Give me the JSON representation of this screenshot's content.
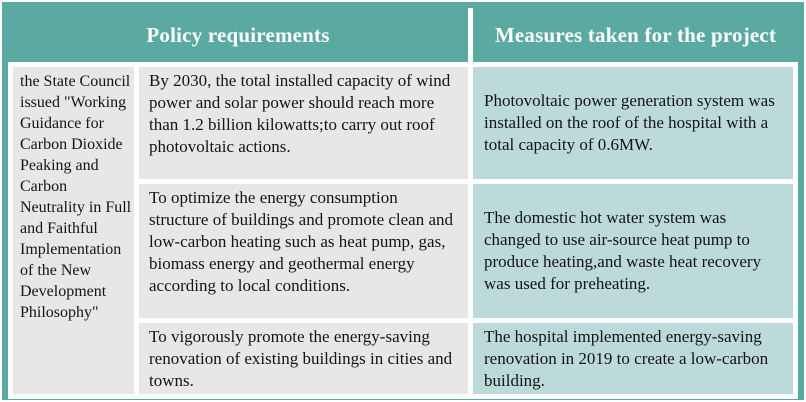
{
  "table": {
    "header": {
      "policy_label": "Policy requirements",
      "measures_label": "Measures taken for the project"
    },
    "policy_source": "the State Council issued \"Working Guidance for Carbon Dioxide Peaking and Carbon Neutrality in Full and Faithful Implementation of the New Development Philosophy\"",
    "rows": [
      {
        "requirement": "By 2030, the total installed capacity of wind power and solar power should reach more than 1.2 billion kilowatts;to carry out roof photovoltaic actions.",
        "measure": "Photovoltaic power generation system was installed on the roof of the hospital with a total capacity of 0.6MW."
      },
      {
        "requirement": "To optimize the energy consumption structure of buildings and promote clean and low-carbon heating such as heat pump, gas, biomass energy and geothermal energy according to local conditions.",
        "measure": "The domestic hot water system was changed to use air-source heat pump to produce heating,and waste heat recovery was used for preheating."
      },
      {
        "requirement": "To vigorously promote the energy-saving renovation of existing buildings in cities and towns.",
        "measure": "The hospital implemented energy-saving renovation in 2019 to create a low-carbon building."
      }
    ],
    "colors": {
      "header_teal": "#5aaaa2",
      "border_teal": "#5aaaa2",
      "requirement_cell_bg": "#e7e7e7",
      "measure_cell_bg": "#bcdad9",
      "header_text": "#ffffff",
      "body_text": "#141414"
    }
  }
}
